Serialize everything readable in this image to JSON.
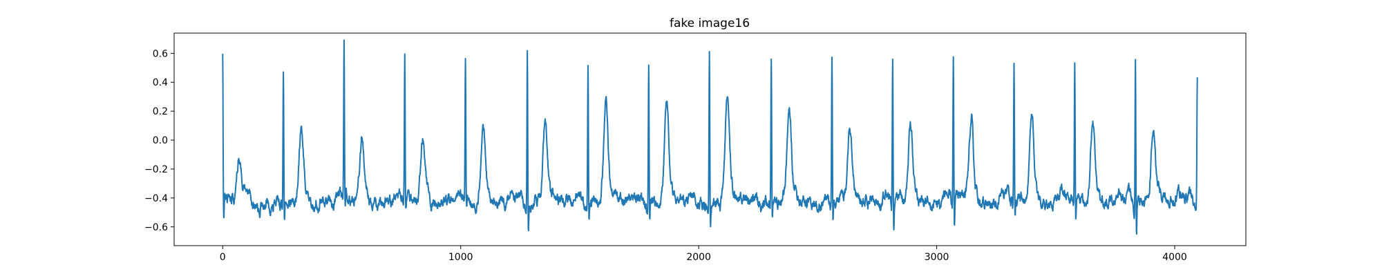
{
  "chart_data": {
    "type": "line",
    "title": "fake image16",
    "xlabel": "",
    "ylabel": "",
    "xlim": [
      -204,
      4299
    ],
    "ylim": [
      -0.73,
      0.74
    ],
    "xticks": [
      0,
      1000,
      2000,
      3000,
      4000
    ],
    "xtick_labels": [
      "0",
      "1000",
      "2000",
      "3000",
      "4000"
    ],
    "yticks": [
      -0.6,
      -0.4,
      -0.2,
      0.0,
      0.2,
      0.4,
      0.6
    ],
    "ytick_labels": [
      "−0.6",
      "−0.4",
      "−0.2",
      "0.0",
      "0.2",
      "0.4",
      "0.6"
    ],
    "grid": false,
    "line_color": "#1f77b4",
    "x_range": [
      0,
      4095
    ],
    "baseline": -0.42,
    "beats": [
      {
        "x": 0,
        "peak": 0.64,
        "trough": -0.55,
        "t_peak": -0.12,
        "t_offset": 70
      },
      {
        "x": 255,
        "peak": 0.5,
        "trough": -0.63,
        "t_peak": 0.06,
        "t_offset": 75
      },
      {
        "x": 510,
        "peak": 0.61,
        "trough": -0.58,
        "t_peak": -0.02,
        "t_offset": 75
      },
      {
        "x": 765,
        "peak": 0.59,
        "trough": -0.53,
        "t_peak": 0.04,
        "t_offset": 75
      },
      {
        "x": 1020,
        "peak": 0.59,
        "trough": -0.52,
        "t_peak": 0.09,
        "t_offset": 75
      },
      {
        "x": 1280,
        "peak": 0.67,
        "trough": -0.64,
        "t_peak": 0.11,
        "t_offset": 75
      },
      {
        "x": 1535,
        "peak": 0.57,
        "trough": -0.58,
        "t_peak": 0.28,
        "t_offset": 75
      },
      {
        "x": 1790,
        "peak": 0.6,
        "trough": -0.61,
        "t_peak": 0.27,
        "t_offset": 75
      },
      {
        "x": 2045,
        "peak": 0.68,
        "trough": -0.6,
        "t_peak": 0.28,
        "t_offset": 75
      },
      {
        "x": 2305,
        "peak": 0.58,
        "trough": -0.58,
        "t_peak": 0.14,
        "t_offset": 75
      },
      {
        "x": 2560,
        "peak": 0.57,
        "trough": -0.66,
        "t_peak": 0.04,
        "t_offset": 75
      },
      {
        "x": 2815,
        "peak": 0.57,
        "trough": -0.66,
        "t_peak": 0.09,
        "t_offset": 75
      },
      {
        "x": 3070,
        "peak": 0.61,
        "trough": -0.65,
        "t_peak": 0.15,
        "t_offset": 75
      },
      {
        "x": 3325,
        "peak": 0.55,
        "trough": -0.6,
        "t_peak": 0.15,
        "t_offset": 75
      },
      {
        "x": 3580,
        "peak": 0.55,
        "trough": -0.62,
        "t_peak": 0.18,
        "t_offset": 75
      },
      {
        "x": 3835,
        "peak": 0.62,
        "trough": -0.67,
        "t_peak": 0.12,
        "t_offset": 75
      },
      {
        "x": 4095,
        "peak": 0.49,
        "trough": -0.6,
        "t_peak": null,
        "t_offset": 0
      }
    ]
  }
}
